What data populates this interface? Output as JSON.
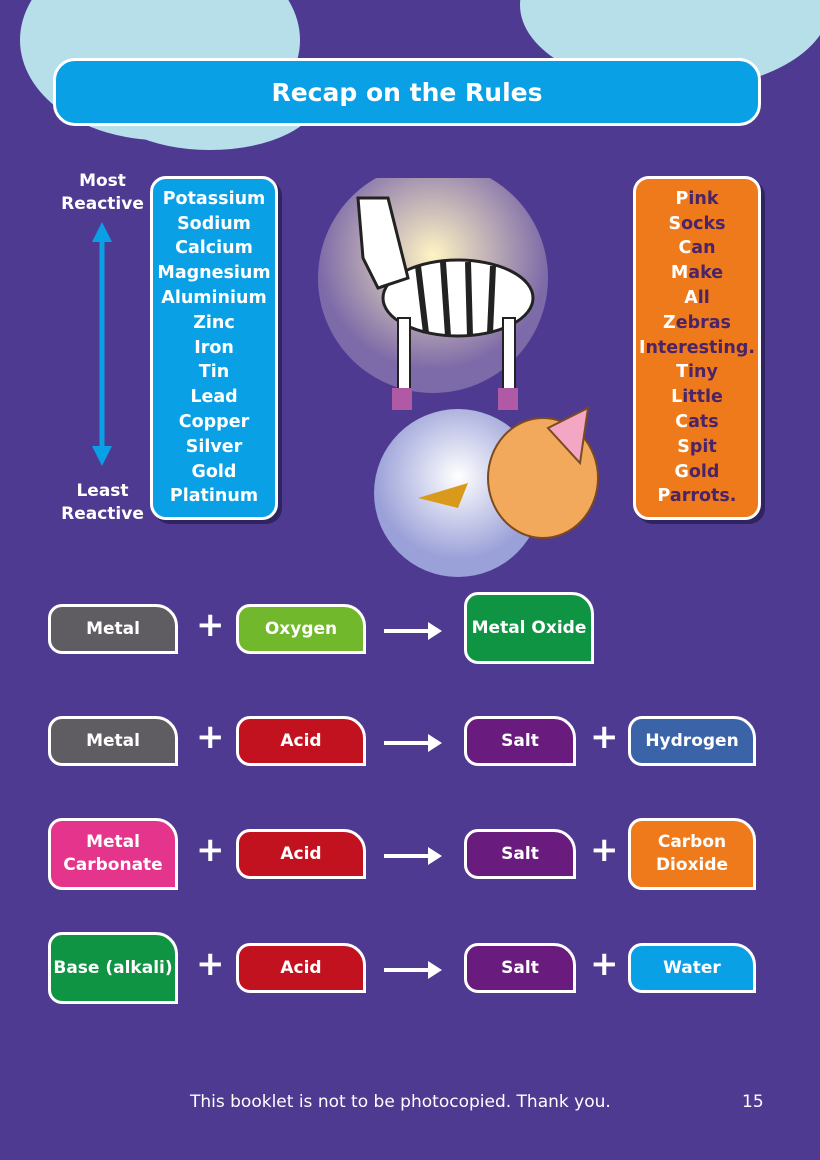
{
  "title": "Recap on the Rules",
  "reactivity": {
    "top_label": "Most Reactive",
    "bottom_label": "Least Reactive",
    "metals": [
      "Potassium",
      "Sodium",
      "Calcium",
      "Magnesium",
      "Aluminium",
      "Zinc",
      "Iron",
      "Tin",
      "Lead",
      "Copper",
      "Silver",
      "Gold",
      "Platinum"
    ]
  },
  "mnemonic": [
    [
      "P",
      "ink"
    ],
    [
      "S",
      "ocks"
    ],
    [
      "C",
      "an"
    ],
    [
      "M",
      "ake"
    ],
    [
      "A",
      "ll"
    ],
    [
      "Z",
      "ebras"
    ],
    [
      "I",
      "nteresting."
    ],
    [
      "T",
      "iny"
    ],
    [
      "L",
      "ittle"
    ],
    [
      "C",
      "ats"
    ],
    [
      "S",
      "pit"
    ],
    [
      "G",
      "old"
    ],
    [
      "P",
      "arrots."
    ]
  ],
  "equations": [
    {
      "terms": [
        {
          "text": "Metal",
          "color": "#5f5d62"
        },
        {
          "text": "Oxygen",
          "color": "#72b82c"
        }
      ],
      "products": [
        {
          "text": "Metal Oxide",
          "color": "#0f9444"
        }
      ]
    },
    {
      "terms": [
        {
          "text": "Metal",
          "color": "#5f5d62"
        },
        {
          "text": "Acid",
          "color": "#c2121f"
        }
      ],
      "products": [
        {
          "text": "Salt",
          "color": "#6a1b7e"
        },
        {
          "text": "Hydrogen",
          "color": "#3b64a8"
        }
      ]
    },
    {
      "terms": [
        {
          "text": "Metal Carbonate",
          "color": "#e4348b"
        },
        {
          "text": "Acid",
          "color": "#c2121f"
        }
      ],
      "products": [
        {
          "text": "Salt",
          "color": "#6a1b7e"
        },
        {
          "text": "Carbon Dioxide",
          "color": "#ef7a1c"
        }
      ]
    },
    {
      "terms": [
        {
          "text": "Base (alkali)",
          "color": "#0f9444"
        },
        {
          "text": "Acid",
          "color": "#c2121f"
        }
      ],
      "products": [
        {
          "text": "Salt",
          "color": "#6a1b7e"
        },
        {
          "text": "Water",
          "color": "#0aa0e6"
        }
      ]
    }
  ],
  "plus": "+",
  "footer": "This booklet is not to be photocopied. Thank you.",
  "page_number": "15"
}
